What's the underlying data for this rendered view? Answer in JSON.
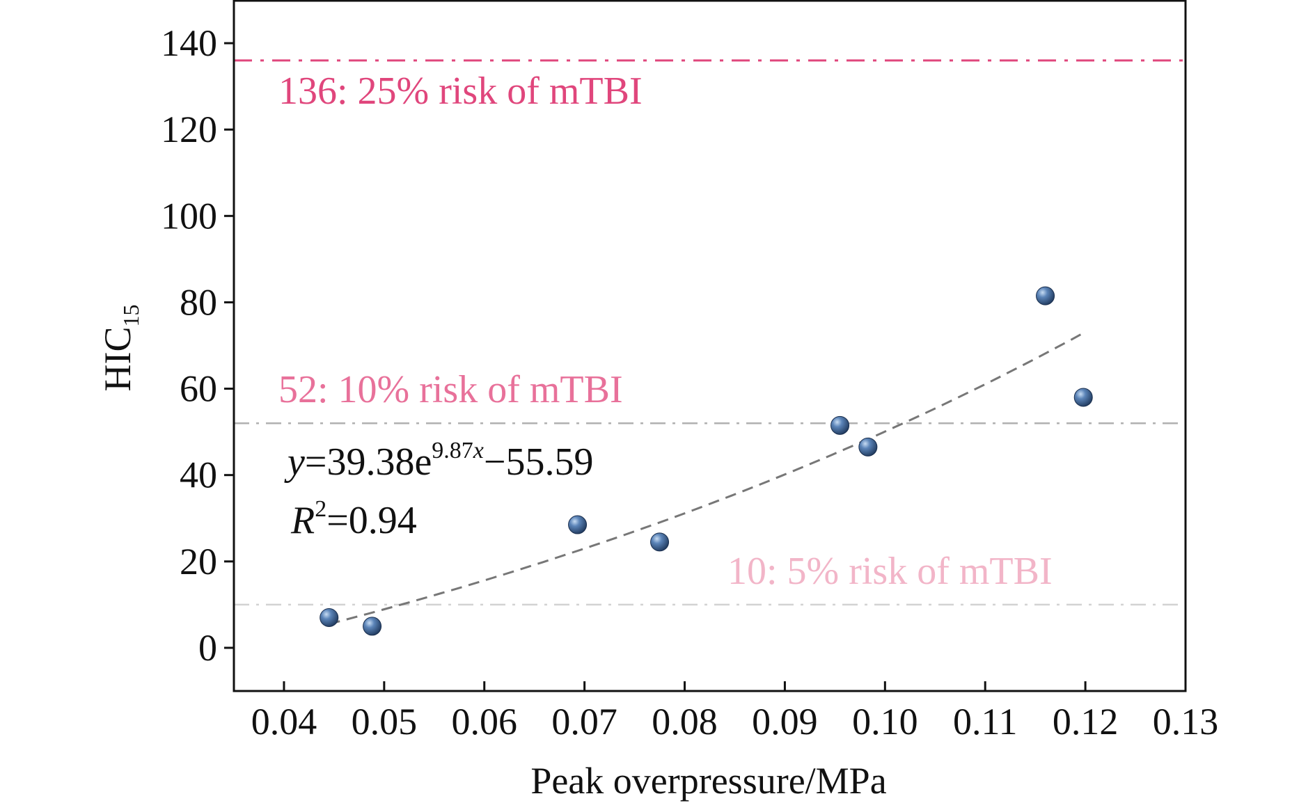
{
  "chart_data": {
    "type": "scatter",
    "xlabel": "Peak overpressure/MPa",
    "ylabel": {
      "main": "HIC",
      "sub": "15"
    },
    "xlim": [
      0.035,
      0.13
    ],
    "ylim": [
      -10,
      150
    ],
    "x_ticks": [
      0.04,
      0.05,
      0.06,
      0.07,
      0.08,
      0.09,
      0.1,
      0.11,
      0.12,
      0.13
    ],
    "x_tick_labels": [
      "0.04",
      "0.05",
      "0.06",
      "0.07",
      "0.08",
      "0.09",
      "0.10",
      "0.11",
      "0.12",
      "0.13"
    ],
    "y_ticks": [
      0,
      20,
      40,
      60,
      80,
      100,
      120,
      140
    ],
    "y_tick_labels": [
      "0",
      "20",
      "40",
      "60",
      "80",
      "100",
      "120",
      "140"
    ],
    "grid": false,
    "points": [
      {
        "x": 0.0445,
        "y": 7
      },
      {
        "x": 0.0488,
        "y": 5
      },
      {
        "x": 0.0693,
        "y": 28.5
      },
      {
        "x": 0.0775,
        "y": 24.5
      },
      {
        "x": 0.0955,
        "y": 51.5
      },
      {
        "x": 0.0983,
        "y": 46.5
      },
      {
        "x": 0.116,
        "y": 81.5
      },
      {
        "x": 0.1198,
        "y": 58
      }
    ],
    "fit": {
      "a": 39.38,
      "b": 9.87,
      "c": -55.59,
      "x_range": [
        0.0445,
        0.1198
      ],
      "color": "#777777",
      "equation": {
        "y": "y",
        "eq1": "=39.38e",
        "exp_coef": "9.87",
        "exp_var": "x",
        "eq2": "−55.59"
      },
      "r2": {
        "r": "R",
        "sup": "2",
        "value": "=0.94"
      }
    },
    "reference_lines": [
      {
        "y": 136,
        "label": "136: 25% risk of mTBI",
        "color": "#e0467c"
      },
      {
        "y": 52,
        "label": "52: 10% risk of mTBI",
        "color": "#e8719a",
        "line_color": "#b0b0b0"
      },
      {
        "y": 10,
        "label": "10: 5% risk of mTBI",
        "color": "#f2b5c8",
        "line_color": "#d2d2d2"
      }
    ],
    "marker_color": "#3b5d8c"
  }
}
